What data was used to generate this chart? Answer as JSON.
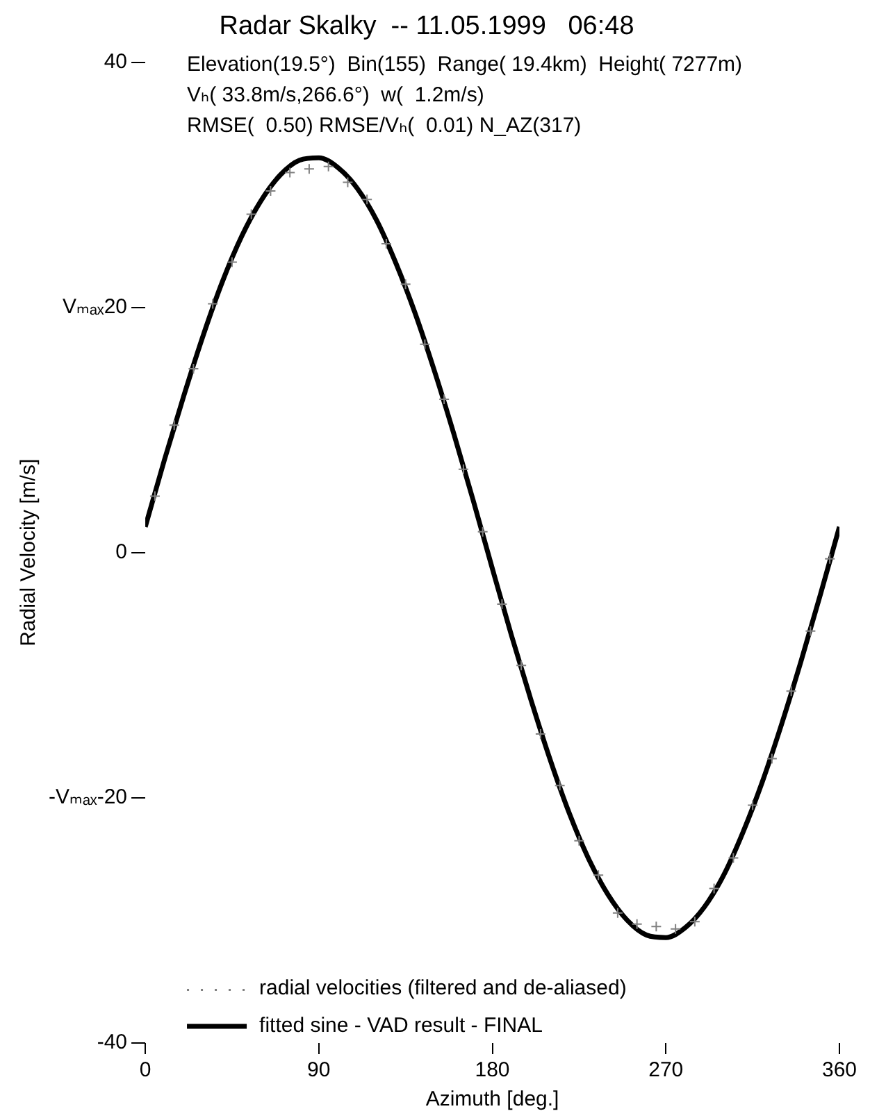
{
  "chart_data": {
    "type": "scatter",
    "title": "Radar Skalky  -- 11.05.1999   06:48",
    "xlabel": "Azimuth [deg.]",
    "ylabel": "Radial Velocity [m/s]",
    "annotations": [
      "Elevation(19.5°)  Bin(155)  Range( 19.4km)  Height( 7277m)",
      "Vₕ( 33.8m/s,266.6°)  w(  1.2m/s)",
      "RMSE(  0.50) RMSE/Vₕ(  0.01) N_AZ(317)"
    ],
    "xlim": [
      0,
      360
    ],
    "xticks": [
      0,
      90,
      180,
      270,
      360
    ],
    "ylim": [
      -40,
      40
    ],
    "yticks": [
      -40,
      {
        "value": -20,
        "label": "-Vₘₐₓ-20"
      },
      0,
      {
        "value": 20,
        "label": "Vₘₐₓ20"
      },
      40
    ],
    "grid": false,
    "legend": "bottom left",
    "series": [
      {
        "name": "radial velocities (filtered and de-aliased)",
        "type": "scatter",
        "marker": "cross",
        "color": "#808080",
        "x": [
          5,
          15,
          25,
          35,
          45,
          55,
          65,
          75,
          85,
          95,
          105,
          115,
          125,
          135,
          145,
          155,
          165,
          175,
          185,
          195,
          205,
          215,
          225,
          235,
          245,
          255,
          265,
          275,
          285,
          295,
          305,
          315,
          325,
          335,
          345,
          355
        ],
        "values": [
          4.6,
          10.4,
          15.0,
          20.3,
          23.7,
          27.6,
          29.5,
          31.0,
          31.3,
          31.5,
          30.2,
          28.8,
          25.2,
          21.9,
          17.0,
          12.5,
          6.8,
          1.7,
          -4.2,
          -9.2,
          -14.8,
          -19.0,
          -23.5,
          -26.3,
          -29.4,
          -30.3,
          -30.5,
          -30.7,
          -30.1,
          -27.4,
          -24.9,
          -20.6,
          -16.8,
          -11.3,
          -6.4,
          -0.5
        ]
      },
      {
        "name": "fitted sine - VAD result - FINAL",
        "type": "line",
        "marker": "none",
        "line_style": "solid",
        "color": "#000000",
        "x": [
          0,
          10,
          20,
          30,
          40,
          50,
          60,
          70,
          80,
          90,
          100,
          110,
          120,
          130,
          140,
          150,
          160,
          170,
          180,
          190,
          200,
          210,
          220,
          230,
          240,
          250,
          260,
          270,
          280,
          290,
          300,
          310,
          320,
          330,
          340,
          350,
          360
        ],
        "values": [
          2.1,
          7.6,
          12.8,
          17.7,
          22.1,
          25.8,
          28.7,
          30.8,
          32.0,
          32.2,
          31.4,
          29.7,
          27.1,
          23.6,
          19.5,
          14.8,
          9.7,
          4.3,
          -1.3,
          -6.8,
          -12.0,
          -16.9,
          -21.3,
          -25.0,
          -27.9,
          -30.0,
          -31.2,
          -31.4,
          -30.6,
          -28.9,
          -26.3,
          -22.8,
          -18.7,
          -14.0,
          -8.9,
          -3.5,
          2.1
        ]
      }
    ]
  }
}
